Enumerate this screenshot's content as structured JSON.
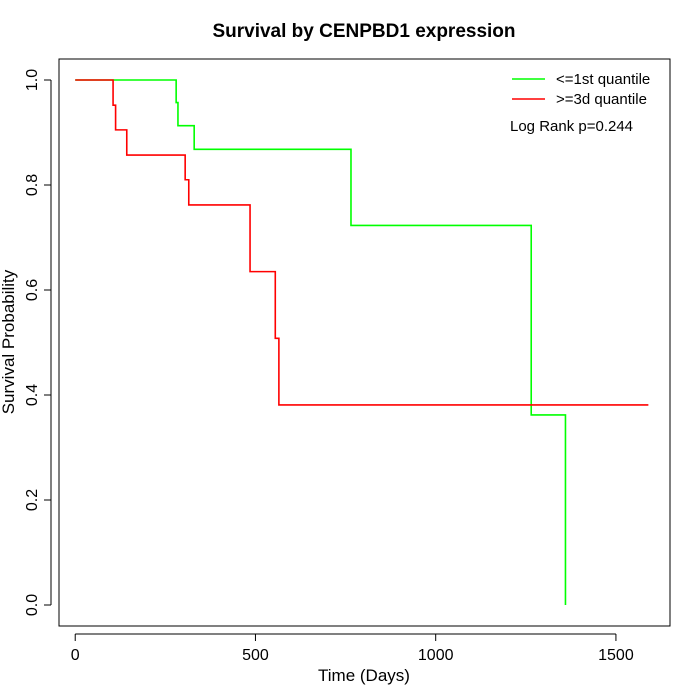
{
  "chart_data": {
    "type": "line",
    "step": true,
    "title": "Survival by CENPBD1 expression",
    "xlabel": "Time (Days)",
    "ylabel": "Survival Probability",
    "xlim": [
      -45,
      1650
    ],
    "ylim": [
      -0.04,
      1.04
    ],
    "xticks": [
      0,
      500,
      1000,
      1500
    ],
    "xtick_labels": [
      "0",
      "500",
      "1000",
      "1500"
    ],
    "yticks": [
      0.0,
      0.2,
      0.4,
      0.6,
      0.8,
      1.0
    ],
    "ytick_labels": [
      "0.0",
      "0.2",
      "0.4",
      "0.6",
      "0.8",
      "1.0"
    ],
    "grid": false,
    "legend_position": "top-right",
    "annotation": "Log Rank p=0.244",
    "series": [
      {
        "name": "<=1st quantile",
        "color": "#00ff00",
        "x": [
          0,
          280,
          285,
          330,
          765,
          1265,
          1360
        ],
        "y": [
          1.0,
          0.957,
          0.913,
          0.868,
          0.723,
          0.362,
          0.0
        ],
        "end_x": 1360
      },
      {
        "name": ">=3d quantile",
        "color": "#ff0000",
        "x": [
          0,
          105,
          112,
          143,
          305,
          315,
          485,
          555,
          565
        ],
        "y": [
          1.0,
          0.952,
          0.905,
          0.857,
          0.81,
          0.762,
          0.635,
          0.508,
          0.381
        ],
        "end_x": 1590
      }
    ]
  }
}
